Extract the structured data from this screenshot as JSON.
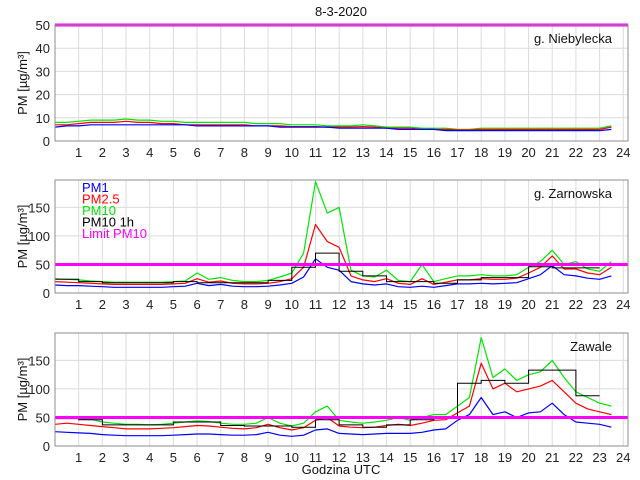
{
  "chart_data": {
    "type": "line",
    "title": "8-3-2020",
    "xlabel": "Godzina UTC",
    "xlim": [
      0,
      24.2
    ],
    "xticks": [
      1,
      2,
      3,
      4,
      5,
      6,
      7,
      8,
      9,
      10,
      11,
      12,
      13,
      14,
      15,
      16,
      17,
      18,
      19,
      20,
      21,
      22,
      23,
      24
    ],
    "grid": true,
    "colors": {
      "PM1": "#0000ff",
      "PM2.5": "#ff0000",
      "PM10": "#00e600",
      "PM10 1h": "#000000",
      "Limit PM10": "#ff00ff"
    },
    "legend": {
      "placement": "top-left",
      "panel": 1,
      "entries": [
        "PM1",
        "PM2.5",
        "PM10",
        "PM10 1h",
        "Limit PM10"
      ]
    },
    "x": [
      0,
      0.5,
      1,
      1.5,
      2,
      2.5,
      3,
      3.5,
      4,
      4.5,
      5,
      5.5,
      6,
      6.5,
      7,
      7.5,
      8,
      8.5,
      9,
      9.5,
      10,
      10.5,
      11,
      11.5,
      12,
      12.5,
      13,
      13.5,
      14,
      14.5,
      15,
      15.5,
      16,
      16.5,
      17,
      17.5,
      18,
      18.5,
      19,
      19.5,
      20,
      20.5,
      21,
      21.5,
      22,
      22.5,
      23,
      23.5
    ],
    "limit": 50,
    "panels": [
      {
        "station": "g. Niebylecka",
        "ylabel": "PM [µg/m³]",
        "ylim": [
          0,
          50
        ],
        "yticks": [
          0,
          10,
          20,
          30,
          40,
          50
        ],
        "series": [
          {
            "name": "PM10",
            "values": [
              8,
              8,
              8.5,
              9,
              9,
              9,
              9.5,
              9,
              9,
              8.5,
              8.5,
              8,
              8,
              8,
              8,
              8,
              8,
              7.5,
              7.5,
              7.5,
              7,
              7,
              7,
              6.5,
              6.5,
              6.5,
              7,
              6.5,
              6,
              6,
              6,
              5.5,
              5.5,
              5.5,
              5,
              5,
              5.5,
              5.5,
              5.5,
              5.5,
              5.5,
              5.5,
              5.5,
              5.5,
              5.5,
              5.5,
              5.5,
              6.5
            ]
          },
          {
            "name": "PM2.5",
            "values": [
              7,
              7,
              7.5,
              8,
              8,
              8,
              8.5,
              8,
              8,
              7.5,
              7.5,
              7,
              7,
              7,
              7,
              7,
              7,
              6.5,
              6.5,
              6.5,
              6.2,
              6.2,
              6.2,
              6,
              6,
              6,
              6.2,
              6,
              5.5,
              5.5,
              5.5,
              5,
              5,
              5,
              4.8,
              4.8,
              5,
              5,
              5,
              5,
              5,
              5,
              5,
              5,
              5,
              5,
              5,
              6
            ]
          },
          {
            "name": "PM1",
            "values": [
              6,
              6.5,
              6.5,
              7,
              7,
              7,
              7,
              7,
              7,
              7,
              7,
              7,
              6.5,
              6.5,
              6.5,
              6.5,
              6.5,
              6.5,
              6.5,
              6,
              6,
              6,
              6,
              6,
              5.5,
              5.5,
              5.5,
              5.5,
              5.5,
              5,
              5,
              5,
              5,
              4.5,
              4.5,
              4.5,
              4.5,
              4.5,
              4.5,
              4.5,
              4.5,
              4.5,
              4.5,
              4.5,
              4.5,
              4.5,
              4.5,
              5
            ]
          }
        ],
        "pm10_1h": []
      },
      {
        "station": "g. Zarnowska",
        "ylabel": "PM [µg/m³]",
        "ylim": [
          0,
          198
        ],
        "yticks": [
          0,
          50,
          100,
          150
        ],
        "series": [
          {
            "name": "PM10",
            "values": [
              25,
              24,
              23,
              21,
              20,
              19,
              19,
              19,
              19,
              19,
              20,
              21,
              35,
              24,
              27,
              22,
              20,
              20,
              22,
              28,
              35,
              70,
              195,
              140,
              150,
              40,
              30,
              28,
              40,
              22,
              20,
              50,
              20,
              25,
              30,
              30,
              32,
              30,
              30,
              32,
              45,
              55,
              75,
              50,
              55,
              42,
              38,
              55
            ]
          },
          {
            "name": "PM2.5",
            "values": [
              20,
              19,
              18,
              17,
              16,
              15,
              15,
              15,
              15,
              15,
              16,
              17,
              25,
              19,
              21,
              17,
              16,
              16,
              17,
              20,
              25,
              45,
              120,
              90,
              80,
              30,
              23,
              20,
              25,
              17,
              15,
              25,
              15,
              19,
              23,
              23,
              25,
              24,
              24,
              26,
              35,
              45,
              65,
              42,
              42,
              35,
              32,
              45
            ]
          },
          {
            "name": "PM1",
            "values": [
              14,
              13,
              13,
              12,
              11,
              10,
              10,
              10,
              10,
              10,
              11,
              12,
              17,
              13,
              15,
              12,
              11,
              11,
              12,
              14,
              17,
              28,
              60,
              45,
              40,
              20,
              16,
              14,
              16,
              11,
              10,
              12,
              10,
              13,
              16,
              16,
              17,
              16,
              17,
              18,
              25,
              32,
              48,
              32,
              30,
              26,
              24,
              30
            ]
          }
        ],
        "pm10_1h": [
          24,
          20,
          18,
          18,
          18,
          20,
          18,
          18,
          18,
          22,
          45,
          70,
          38,
          30,
          20,
          20,
          17,
          23,
          27,
          27,
          46,
          44,
          44
        ]
      },
      {
        "station": "Zawale",
        "ylabel": "PM [µg/m³]",
        "ylim": [
          0,
          198
        ],
        "yticks": [
          0,
          50,
          100,
          150
        ],
        "series": [
          {
            "name": "PM10",
            "values": [
              50,
              52,
              48,
              47,
              42,
              40,
              38,
              38,
              37,
              38,
              40,
              42,
              44,
              43,
              40,
              38,
              38,
              40,
              50,
              40,
              35,
              40,
              60,
              70,
              45,
              42,
              40,
              42,
              45,
              50,
              45,
              50,
              55,
              55,
              70,
              85,
              190,
              120,
              135,
              115,
              125,
              130,
              150,
              120,
              95,
              85,
              75,
              70
            ]
          },
          {
            "name": "PM2.5",
            "values": [
              38,
              40,
              38,
              36,
              34,
              32,
              30,
              30,
              30,
              31,
              32,
              34,
              36,
              35,
              33,
              31,
              30,
              32,
              38,
              32,
              28,
              32,
              45,
              50,
              35,
              33,
              32,
              33,
              36,
              38,
              36,
              40,
              45,
              46,
              58,
              70,
              145,
              100,
              110,
              95,
              100,
              105,
              115,
              95,
              75,
              65,
              60,
              55
            ]
          },
          {
            "name": "PM1",
            "values": [
              25,
              24,
              23,
              22,
              20,
              19,
              18,
              18,
              18,
              18,
              19,
              20,
              21,
              21,
              20,
              19,
              19,
              20,
              24,
              19,
              17,
              19,
              28,
              30,
              22,
              21,
              20,
              21,
              22,
              22,
              22,
              24,
              28,
              30,
              45,
              55,
              85,
              55,
              60,
              50,
              58,
              60,
              75,
              55,
              42,
              40,
              38,
              33
            ]
          }
        ],
        "pm10_1h": [
          48,
          46,
          37,
          37,
          37,
          42,
          42,
          36,
          35,
          35,
          33,
          46,
          37,
          33,
          37,
          46,
          50,
          110,
          115,
          110,
          133,
          133,
          88
        ]
      }
    ]
  }
}
